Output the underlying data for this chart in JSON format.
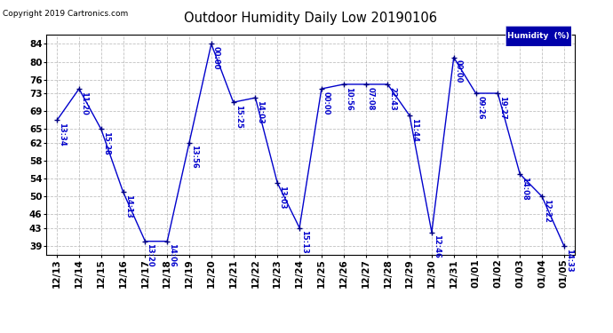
{
  "title": "Outdoor Humidity Daily Low 20190106",
  "copyright": "Copyright 2019 Cartronics.com",
  "legend_label": "Humidity  (%)",
  "background_color": "#ffffff",
  "line_color": "#0000cc",
  "point_color": "#000080",
  "label_color": "#0000cc",
  "grid_color": "#bbbbbb",
  "legend_bg": "#0000aa",
  "x_labels": [
    "12/13",
    "12/14",
    "12/15",
    "12/16",
    "12/17",
    "12/18",
    "12/19",
    "12/20",
    "12/21",
    "12/22",
    "12/23",
    "12/24",
    "12/25",
    "12/26",
    "12/27",
    "12/28",
    "12/29",
    "12/30",
    "12/31",
    "01/01",
    "01/02",
    "01/03",
    "01/04",
    "01/05"
  ],
  "y_values": [
    67,
    74,
    65,
    51,
    40,
    40,
    62,
    84,
    71,
    72,
    53,
    43,
    74,
    75,
    75,
    75,
    68,
    42,
    81,
    73,
    73,
    55,
    50,
    39
  ],
  "time_labels": [
    "13:34",
    "11:20",
    "15:28",
    "14:13",
    "13:20",
    "14:06",
    "13:56",
    "00:00",
    "15:25",
    "14:03",
    "13:03",
    "15:13",
    "00:00",
    "10:56",
    "07:08",
    "22:43",
    "11:44",
    "12:46",
    "00:00",
    "09:26",
    "19:27",
    "14:08",
    "12:22",
    "14:33"
  ],
  "ylim_min": 37,
  "ylim_max": 86,
  "yticks": [
    39,
    43,
    46,
    50,
    54,
    58,
    62,
    65,
    69,
    73,
    76,
    80,
    84
  ],
  "label_fontsize": 6.0,
  "tick_fontsize": 7.5,
  "title_fontsize": 10.5
}
